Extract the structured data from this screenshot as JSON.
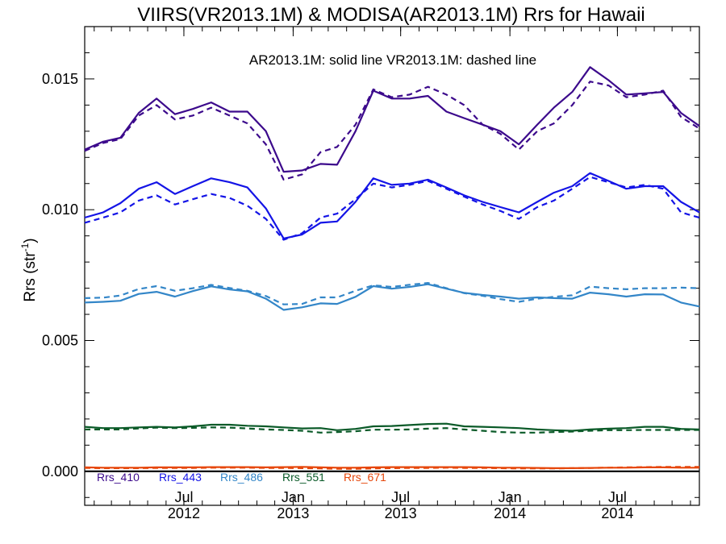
{
  "chart_data": {
    "type": "line",
    "title": "VIIRS(VR2013.1M) & MODISA(AR2013.1M)  Rrs for Hawaii",
    "annotation": "AR2013.1M: solid line   VR2013.1M: dashed line",
    "ylabel_main": "Rrs (str",
    "ylabel_sup": "-1",
    "ylabel_close": ")",
    "ylim": [
      -0.0013,
      0.017
    ],
    "yticks": [
      "0.000",
      "0.005",
      "0.010",
      "0.015"
    ],
    "x_range": [
      "2012-01-16",
      "2014-11-16"
    ],
    "x_ticks": [
      {
        "date": "2012-07-01",
        "line1": "Jul",
        "line2": "2012"
      },
      {
        "date": "2013-01-01",
        "line1": "Jan",
        "line2": "2013"
      },
      {
        "date": "2013-07-01",
        "line1": "Jul",
        "line2": "2013"
      },
      {
        "date": "2014-01-01",
        "line1": "Jan",
        "line2": "2014"
      },
      {
        "date": "2014-07-01",
        "line1": "Jul",
        "line2": "2014"
      }
    ],
    "x_months": [
      "2012-01-16",
      "2012-02-16",
      "2012-03-16",
      "2012-04-16",
      "2012-05-16",
      "2012-06-16",
      "2012-07-16",
      "2012-08-16",
      "2012-09-16",
      "2012-10-16",
      "2012-11-16",
      "2012-12-16",
      "2013-01-16",
      "2013-02-16",
      "2013-03-16",
      "2013-04-16",
      "2013-05-16",
      "2013-06-16",
      "2013-07-16",
      "2013-08-16",
      "2013-09-16",
      "2013-10-16",
      "2013-11-16",
      "2013-12-16",
      "2014-01-16",
      "2014-02-16",
      "2014-03-16",
      "2014-04-16",
      "2014-05-16",
      "2014-06-16",
      "2014-07-16",
      "2014-08-16",
      "2014-09-16",
      "2014-10-16",
      "2014-11-16"
    ],
    "legend_placement": "bottom-left",
    "series": [
      {
        "name": "Rrs_410",
        "color": "#3c0a8c",
        "solid": [
          0.0123,
          0.0126,
          0.01275,
          0.0137,
          0.01425,
          0.01365,
          0.01385,
          0.0141,
          0.01375,
          0.01375,
          0.013,
          0.01145,
          0.0115,
          0.01175,
          0.01172,
          0.013,
          0.01455,
          0.01425,
          0.01425,
          0.01435,
          0.01375,
          0.0135,
          0.01325,
          0.013,
          0.0125,
          0.01325,
          0.0139,
          0.0145,
          0.01545,
          0.01495,
          0.0144,
          0.01445,
          0.0145,
          0.0137,
          0.0132
        ],
        "dashed": [
          0.01225,
          0.01255,
          0.0127,
          0.0136,
          0.014,
          0.01345,
          0.0136,
          0.0139,
          0.0136,
          0.0133,
          0.0125,
          0.01115,
          0.01135,
          0.0122,
          0.0124,
          0.01325,
          0.0146,
          0.0143,
          0.0144,
          0.0147,
          0.0144,
          0.014,
          0.01325,
          0.0129,
          0.0123,
          0.013,
          0.0133,
          0.014,
          0.0149,
          0.01475,
          0.0143,
          0.0144,
          0.01455,
          0.01355,
          0.0131
        ]
      },
      {
        "name": "Rrs_443",
        "color": "#1414e6",
        "solid": [
          0.0097,
          0.0099,
          0.01025,
          0.0108,
          0.01105,
          0.0106,
          0.0109,
          0.0112,
          0.01105,
          0.01085,
          0.01005,
          0.0089,
          0.00905,
          0.0095,
          0.00955,
          0.0103,
          0.0112,
          0.01095,
          0.011,
          0.01115,
          0.01085,
          0.01055,
          0.0103,
          0.0101,
          0.0099,
          0.0103,
          0.01065,
          0.0109,
          0.0114,
          0.0111,
          0.0108,
          0.0109,
          0.0109,
          0.0103,
          0.0099
        ],
        "dashed": [
          0.0095,
          0.0097,
          0.0099,
          0.01035,
          0.01055,
          0.0102,
          0.0104,
          0.0106,
          0.01045,
          0.01015,
          0.00965,
          0.00885,
          0.0091,
          0.0097,
          0.00985,
          0.0104,
          0.011,
          0.01085,
          0.01095,
          0.0111,
          0.0108,
          0.0105,
          0.0102,
          0.00995,
          0.00965,
          0.0101,
          0.01035,
          0.0108,
          0.01125,
          0.01105,
          0.01085,
          0.01095,
          0.0108,
          0.0099,
          0.0097
        ]
      },
      {
        "name": "Rrs_486",
        "color": "#3386c8",
        "solid": [
          0.00645,
          0.00648,
          0.00652,
          0.00678,
          0.00686,
          0.00668,
          0.00689,
          0.00707,
          0.00695,
          0.00688,
          0.0066,
          0.00617,
          0.00627,
          0.00642,
          0.0064,
          0.00667,
          0.00708,
          0.00698,
          0.00705,
          0.00715,
          0.00698,
          0.00682,
          0.00674,
          0.00668,
          0.0066,
          0.00665,
          0.00662,
          0.0066,
          0.00683,
          0.00677,
          0.00668,
          0.00677,
          0.00676,
          0.00645,
          0.0063
        ],
        "dashed": [
          0.00662,
          0.00664,
          0.00672,
          0.00697,
          0.00708,
          0.0069,
          0.007,
          0.00713,
          0.00701,
          0.0069,
          0.0067,
          0.00638,
          0.0064,
          0.00665,
          0.00665,
          0.0069,
          0.00711,
          0.00705,
          0.00713,
          0.0072,
          0.007,
          0.00681,
          0.00671,
          0.00658,
          0.00648,
          0.0066,
          0.00667,
          0.00673,
          0.00706,
          0.007,
          0.00696,
          0.007,
          0.007,
          0.00702,
          0.007
        ]
      },
      {
        "name": "Rrs_551",
        "color": "#0a5a28",
        "solid": [
          0.0017,
          0.00165,
          0.00165,
          0.00168,
          0.0017,
          0.00168,
          0.00172,
          0.00178,
          0.00178,
          0.00174,
          0.00172,
          0.00168,
          0.00164,
          0.00165,
          0.00157,
          0.00162,
          0.00172,
          0.00173,
          0.00177,
          0.00181,
          0.00182,
          0.00172,
          0.0017,
          0.00168,
          0.00165,
          0.0016,
          0.00157,
          0.00155,
          0.0016,
          0.00163,
          0.00165,
          0.0017,
          0.0017,
          0.00162,
          0.0016
        ],
        "dashed": [
          0.0016,
          0.0016,
          0.0016,
          0.00164,
          0.00167,
          0.00165,
          0.00166,
          0.00168,
          0.00167,
          0.00164,
          0.0016,
          0.00158,
          0.00155,
          0.00148,
          0.0015,
          0.00153,
          0.00159,
          0.00159,
          0.0016,
          0.00163,
          0.00165,
          0.0016,
          0.00155,
          0.0015,
          0.00148,
          0.00148,
          0.0015,
          0.00152,
          0.00155,
          0.00157,
          0.00157,
          0.00158,
          0.00158,
          0.00158,
          0.00158
        ]
      },
      {
        "name": "Rrs_671",
        "color": "#e6460a",
        "solid": [
          0.00015,
          0.00014,
          0.00014,
          0.00014,
          0.00015,
          0.00015,
          0.00015,
          0.00016,
          0.00016,
          0.00016,
          0.00015,
          0.00016,
          0.00017,
          0.00015,
          0.00014,
          0.00014,
          0.00015,
          0.00016,
          0.00016,
          0.00016,
          0.00016,
          0.00016,
          0.00015,
          0.00014,
          0.00014,
          0.00013,
          0.00012,
          0.00012,
          0.00013,
          0.00014,
          0.00014,
          0.00015,
          0.00015,
          0.00014,
          0.00014
        ],
        "dashed": [
          0.00013,
          0.00012,
          0.00012,
          0.00012,
          0.00013,
          0.00013,
          0.00013,
          0.00014,
          0.00014,
          0.00014,
          0.00013,
          0.00013,
          0.00012,
          0.00011,
          0.0001,
          0.0001,
          0.00011,
          0.00012,
          0.00013,
          0.00013,
          0.00014,
          0.00013,
          0.00013,
          0.00012,
          0.00011,
          0.00011,
          0.00011,
          0.00012,
          0.00013,
          0.00014,
          0.00015,
          0.00016,
          0.00017,
          0.00017,
          0.00017
        ]
      }
    ]
  }
}
